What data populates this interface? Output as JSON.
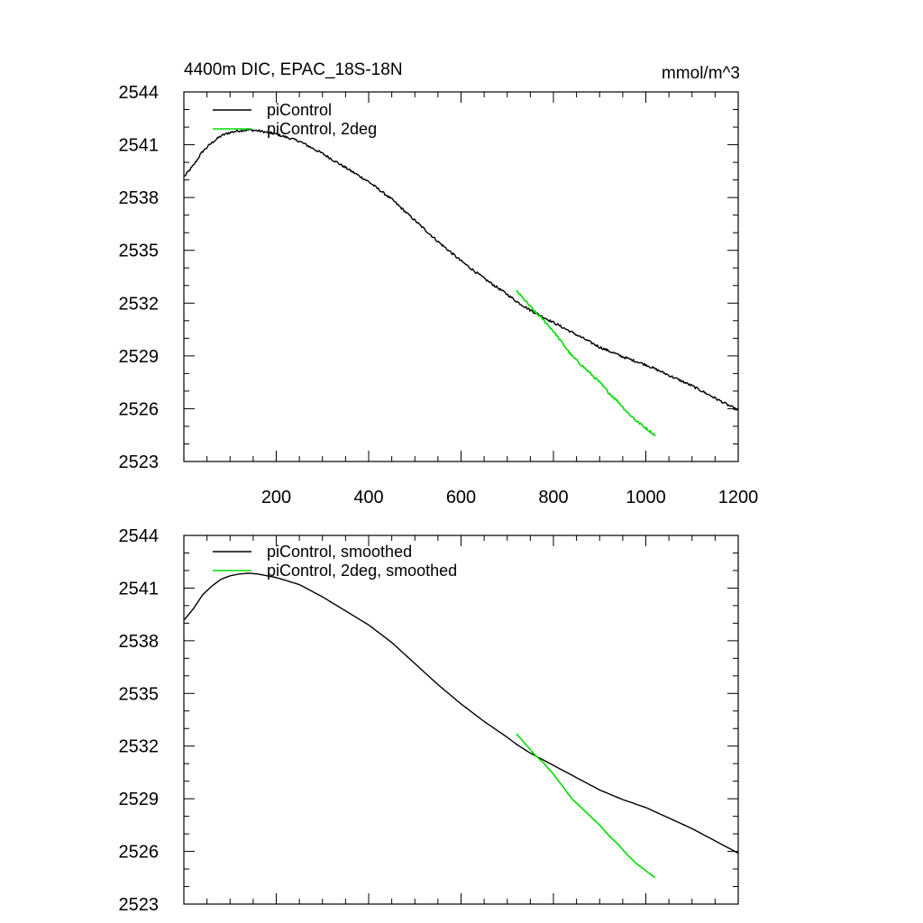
{
  "figure": {
    "title_left": "4400m DIC, EPAC_18S-18N",
    "title_right": "mmol/m^3"
  },
  "colors": {
    "piControl": "#000000",
    "piControl_2deg": "#00dd00",
    "axis": "#000000",
    "background": "#ffffff"
  },
  "chart_data": [
    {
      "type": "line",
      "title": "4400m DIC, EPAC_18S-18N",
      "units": "mmol/m^3",
      "xlabel": "",
      "ylabel": "",
      "xlim": [
        0,
        1200
      ],
      "ylim": [
        2523,
        2544
      ],
      "xticks": [
        200,
        400,
        600,
        800,
        1000,
        1200
      ],
      "xtick_labels": [
        "200",
        "400",
        "600",
        "800",
        "1000",
        "1200"
      ],
      "yticks": [
        2523,
        2526,
        2529,
        2532,
        2535,
        2538,
        2541,
        2544
      ],
      "ytick_labels": [
        "2523",
        "2526",
        "2529",
        "2532",
        "2535",
        "2538",
        "2541",
        "2544"
      ],
      "grid": false,
      "legend_position": "top-left",
      "series": [
        {
          "name": "piControl",
          "color": "#000000",
          "noisy": true,
          "x": [
            1,
            20,
            40,
            60,
            80,
            100,
            120,
            140,
            160,
            180,
            200,
            250,
            300,
            350,
            400,
            450,
            500,
            550,
            600,
            650,
            700,
            720,
            750,
            800,
            850,
            900,
            950,
            1000,
            1050,
            1100,
            1150,
            1200
          ],
          "values": [
            2539.2,
            2539.8,
            2540.6,
            2541.1,
            2541.5,
            2541.7,
            2541.8,
            2541.85,
            2541.8,
            2541.7,
            2541.6,
            2541.2,
            2540.5,
            2539.7,
            2538.9,
            2537.9,
            2536.7,
            2535.5,
            2534.4,
            2533.4,
            2532.5,
            2532.1,
            2531.6,
            2530.9,
            2530.2,
            2529.5,
            2528.95,
            2528.5,
            2527.9,
            2527.3,
            2526.6,
            2525.9
          ]
        },
        {
          "name": "piControl, 2deg",
          "color": "#00dd00",
          "noisy": true,
          "x": [
            720,
            740,
            760,
            780,
            800,
            820,
            840,
            860,
            880,
            900,
            920,
            940,
            960,
            980,
            1000,
            1020
          ],
          "values": [
            2532.7,
            2532.1,
            2531.5,
            2531.0,
            2530.4,
            2529.7,
            2529.0,
            2528.5,
            2528.0,
            2527.5,
            2526.9,
            2526.4,
            2525.8,
            2525.3,
            2524.9,
            2524.5
          ]
        }
      ]
    },
    {
      "type": "line",
      "title": "",
      "xlabel": "",
      "ylabel": "",
      "xlim": [
        0,
        1200
      ],
      "ylim": [
        2523,
        2544
      ],
      "xticks": [
        200,
        400,
        600,
        800,
        1000,
        1200
      ],
      "xtick_labels": [],
      "yticks": [
        2523,
        2526,
        2529,
        2532,
        2535,
        2538,
        2541,
        2544
      ],
      "ytick_labels": [
        "2523",
        "2526",
        "2529",
        "2532",
        "2535",
        "2538",
        "2541",
        "2544"
      ],
      "grid": false,
      "legend_position": "top-left",
      "series": [
        {
          "name": "piControl, smoothed",
          "color": "#000000",
          "noisy": false,
          "x": [
            1,
            20,
            40,
            60,
            80,
            100,
            120,
            140,
            160,
            180,
            200,
            250,
            300,
            350,
            400,
            450,
            500,
            550,
            600,
            650,
            700,
            720,
            750,
            800,
            850,
            900,
            950,
            1000,
            1050,
            1100,
            1150,
            1200
          ],
          "values": [
            2539.2,
            2539.8,
            2540.6,
            2541.1,
            2541.5,
            2541.7,
            2541.8,
            2541.85,
            2541.8,
            2541.7,
            2541.6,
            2541.2,
            2540.5,
            2539.7,
            2538.9,
            2537.9,
            2536.7,
            2535.5,
            2534.4,
            2533.4,
            2532.5,
            2532.1,
            2531.6,
            2530.9,
            2530.2,
            2529.5,
            2528.95,
            2528.5,
            2527.9,
            2527.3,
            2526.6,
            2525.9
          ]
        },
        {
          "name": "piControl, 2deg, smoothed",
          "color": "#00dd00",
          "noisy": false,
          "x": [
            720,
            740,
            760,
            780,
            800,
            820,
            840,
            860,
            880,
            900,
            920,
            940,
            960,
            980,
            1000,
            1020
          ],
          "values": [
            2532.7,
            2532.1,
            2531.5,
            2531.0,
            2530.4,
            2529.7,
            2529.0,
            2528.5,
            2528.0,
            2527.5,
            2526.9,
            2526.4,
            2525.8,
            2525.3,
            2524.9,
            2524.5
          ]
        }
      ]
    }
  ]
}
